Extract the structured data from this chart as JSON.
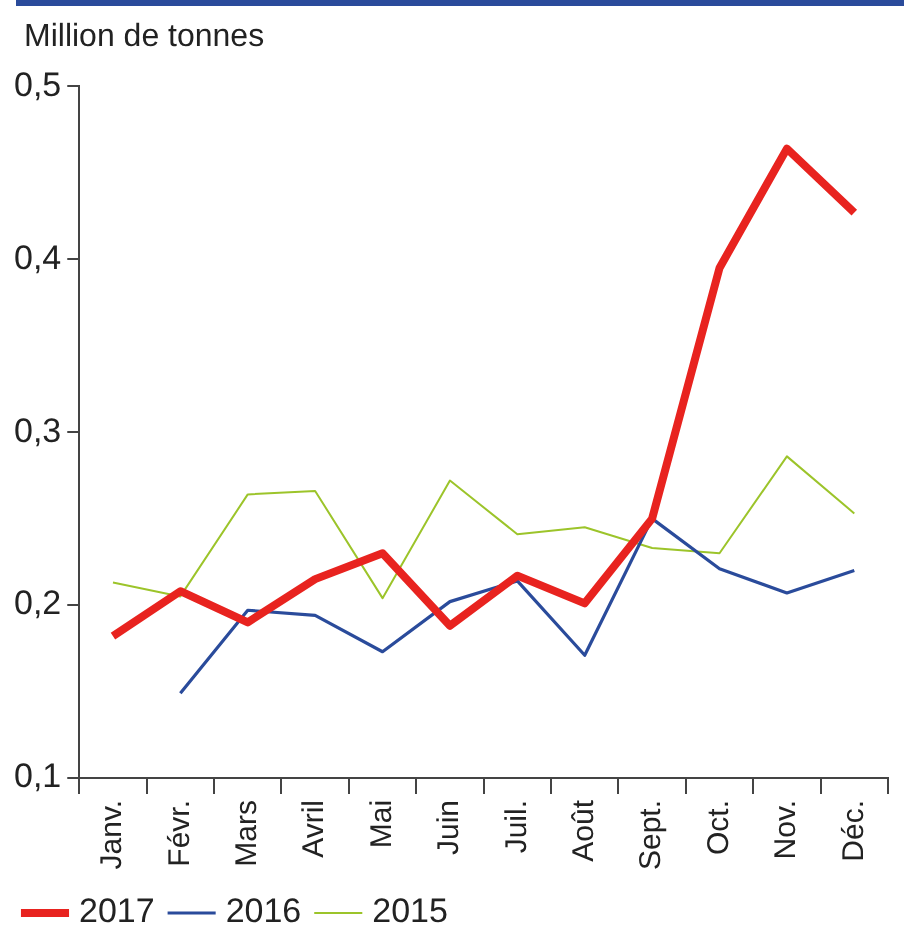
{
  "chart_data": {
    "type": "line",
    "ylabel": "Million de tonnes",
    "categories": [
      "Janv.",
      "Févr.",
      "Mars",
      "Avril",
      "Mai",
      "Juin",
      "Juil.",
      "Août",
      "Sept.",
      "Oct.",
      "Nov.",
      "Déc."
    ],
    "series": [
      {
        "name": "2017",
        "color": "#e8231f",
        "values": [
          0.182,
          0.208,
          0.19,
          0.215,
          0.23,
          0.188,
          0.217,
          0.201,
          0.25,
          0.395,
          0.464,
          0.427
        ]
      },
      {
        "name": "2016",
        "color": "#2a4b9b",
        "values": [
          null,
          0.149,
          0.197,
          0.194,
          0.173,
          0.202,
          0.214,
          0.171,
          0.25,
          0.221,
          0.207,
          0.22
        ]
      },
      {
        "name": "2015",
        "color": "#9cc42a",
        "values": [
          0.213,
          0.205,
          0.264,
          0.266,
          0.204,
          0.272,
          0.241,
          0.245,
          0.233,
          0.23,
          0.286,
          0.253
        ]
      }
    ],
    "ylim": [
      0.1,
      0.5
    ],
    "yticks": [
      {
        "value": 0.1,
        "label": "0,1"
      },
      {
        "value": 0.2,
        "label": "0,2"
      },
      {
        "value": 0.3,
        "label": "0,3"
      },
      {
        "value": 0.4,
        "label": "0,4"
      },
      {
        "value": 0.5,
        "label": "0,5"
      }
    ],
    "grid": false,
    "legend": "bottom",
    "marker": "none",
    "line_style": "solid"
  }
}
